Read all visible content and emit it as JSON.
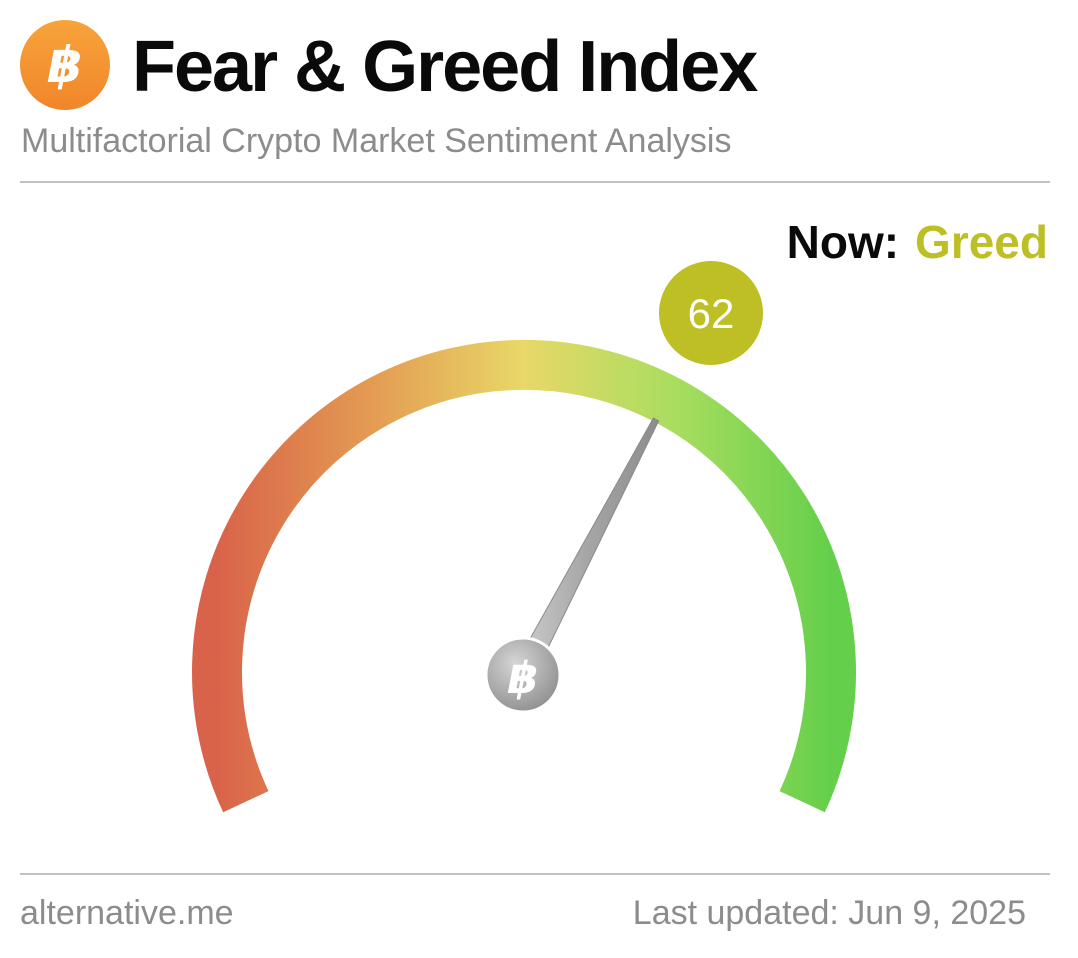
{
  "header": {
    "logo_icon": "bitcoin-icon",
    "title": "Fear & Greed Index",
    "subtitle": "Multifactorial Crypto Market Sentiment Analysis"
  },
  "status": {
    "now_label": "Now:",
    "classification": "Greed",
    "classification_color": "#bdbf24"
  },
  "gauge": {
    "value": 62,
    "value_text": "62",
    "min": 0,
    "max": 100,
    "scale_colors": [
      "#d9634a",
      "#e39b52",
      "#e8d867",
      "#a8dd5f",
      "#64cf4a"
    ],
    "badge_color": "#bdbf24",
    "hub_icon": "bitcoin-icon"
  },
  "footer": {
    "source": "alternative.me",
    "last_updated": "Last updated: Jun 9, 2025"
  }
}
